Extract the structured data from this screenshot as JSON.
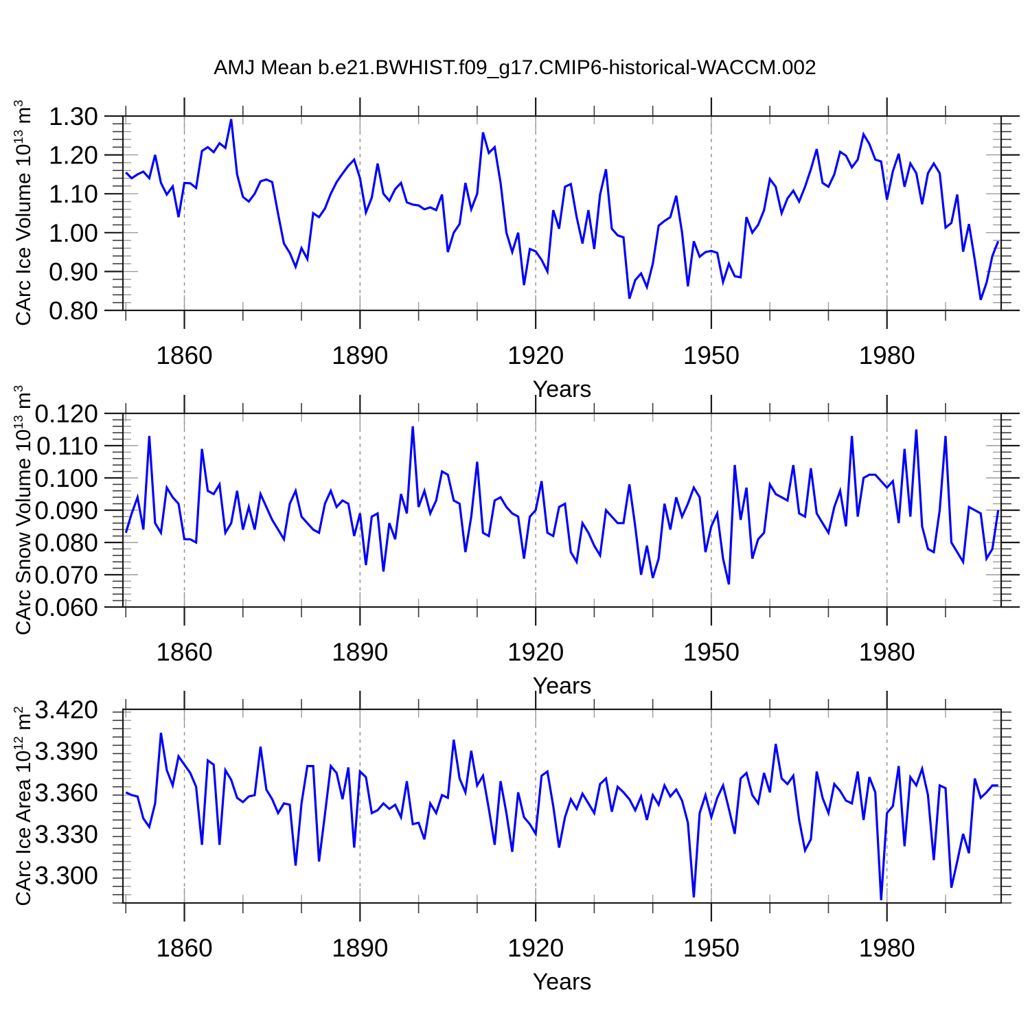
{
  "title": "AMJ Mean b.e21.BWHIST.f09_g17.CMIP6-historical-WACCM.002",
  "line_color": "#0000ff",
  "x_axis": {
    "label": "Years",
    "xlim": [
      1849.5,
      1999.5
    ],
    "major_ticks": [
      1860,
      1890,
      1920,
      1950,
      1980
    ],
    "minor_step": 10,
    "grid_at_major": true
  },
  "chart_data": [
    {
      "type": "line",
      "name": "CArc Ice Volume",
      "ylabel": {
        "prefix": "CArc Ice Volume 10",
        "sup1": "13",
        "mid": " m",
        "sup2": "3"
      },
      "xlabel": "Years",
      "ylim": [
        0.8,
        1.3
      ],
      "y_major_ticks": [
        "0.80",
        "0.90",
        "1.00",
        "1.10",
        "1.20",
        "1.30"
      ],
      "y_minor_step": 0.02,
      "x_start": 1850,
      "x_step": 1,
      "values": [
        1.155,
        1.14,
        1.15,
        1.157,
        1.14,
        1.2,
        1.128,
        1.098,
        1.119,
        1.04,
        1.128,
        1.127,
        1.115,
        1.21,
        1.22,
        1.207,
        1.23,
        1.218,
        1.292,
        1.15,
        1.092,
        1.08,
        1.1,
        1.132,
        1.137,
        1.13,
        1.048,
        0.972,
        0.948,
        0.912,
        0.96,
        0.932,
        1.05,
        1.04,
        1.062,
        1.1,
        1.13,
        1.152,
        1.172,
        1.188,
        1.14,
        1.052,
        1.09,
        1.178,
        1.1,
        1.082,
        1.112,
        1.128,
        1.078,
        1.072,
        1.07,
        1.06,
        1.065,
        1.058,
        1.098,
        0.95,
        1.0,
        1.022,
        1.128,
        1.06,
        1.1,
        1.258,
        1.205,
        1.22,
        1.128,
        1.0,
        0.95,
        1.0,
        0.865,
        0.958,
        0.952,
        0.93,
        0.9,
        1.058,
        1.01,
        1.118,
        1.125,
        1.04,
        0.972,
        1.058,
        0.958,
        1.098,
        1.163,
        1.01,
        0.993,
        0.988,
        0.83,
        0.878,
        0.895,
        0.86,
        0.92,
        1.018,
        1.03,
        1.04,
        1.095,
        1.0,
        0.862,
        0.978,
        0.938,
        0.95,
        0.953,
        0.948,
        0.873,
        0.92,
        0.888,
        0.885,
        1.04,
        1.0,
        1.02,
        1.058,
        1.138,
        1.118,
        1.05,
        1.088,
        1.108,
        1.08,
        1.118,
        1.163,
        1.215,
        1.128,
        1.118,
        1.15,
        1.208,
        1.198,
        1.168,
        1.188,
        1.253,
        1.228,
        1.188,
        1.183,
        1.085,
        1.158,
        1.203,
        1.118,
        1.178,
        1.153,
        1.073,
        1.153,
        1.178,
        1.153,
        1.013,
        1.025,
        1.098,
        0.951,
        1.022,
        0.93,
        0.827,
        0.871,
        0.94,
        0.978
      ]
    },
    {
      "type": "line",
      "name": "CArc Snow Volume",
      "ylabel": {
        "prefix": "CArc Snow Volume 10",
        "sup1": "13",
        "mid": " m",
        "sup2": "3"
      },
      "xlabel": "Years",
      "ylim": [
        0.06,
        0.12
      ],
      "y_major_ticks": [
        "0.060",
        "0.070",
        "0.080",
        "0.090",
        "0.100",
        "0.110",
        "0.120"
      ],
      "y_minor_step": 0.002,
      "x_start": 1850,
      "x_step": 1,
      "values": [
        0.083,
        0.089,
        0.094,
        0.084,
        0.113,
        0.086,
        0.083,
        0.097,
        0.094,
        0.092,
        0.081,
        0.081,
        0.08,
        0.109,
        0.096,
        0.095,
        0.098,
        0.083,
        0.086,
        0.096,
        0.084,
        0.091,
        0.084,
        0.095,
        0.091,
        0.087,
        0.084,
        0.081,
        0.092,
        0.096,
        0.088,
        0.086,
        0.084,
        0.083,
        0.092,
        0.096,
        0.091,
        0.093,
        0.092,
        0.082,
        0.089,
        0.073,
        0.088,
        0.089,
        0.071,
        0.086,
        0.081,
        0.095,
        0.089,
        0.116,
        0.091,
        0.096,
        0.089,
        0.093,
        0.102,
        0.101,
        0.093,
        0.092,
        0.077,
        0.088,
        0.105,
        0.083,
        0.082,
        0.093,
        0.094,
        0.091,
        0.089,
        0.088,
        0.075,
        0.088,
        0.09,
        0.099,
        0.083,
        0.082,
        0.091,
        0.092,
        0.077,
        0.074,
        0.086,
        0.083,
        0.079,
        0.076,
        0.09,
        0.088,
        0.086,
        0.086,
        0.098,
        0.085,
        0.07,
        0.079,
        0.069,
        0.075,
        0.092,
        0.084,
        0.094,
        0.088,
        0.092,
        0.097,
        0.094,
        0.077,
        0.085,
        0.089,
        0.075,
        0.067,
        0.104,
        0.087,
        0.097,
        0.075,
        0.081,
        0.083,
        0.098,
        0.095,
        0.094,
        0.093,
        0.104,
        0.089,
        0.088,
        0.103,
        0.089,
        0.086,
        0.083,
        0.091,
        0.096,
        0.085,
        0.113,
        0.088,
        0.1,
        0.101,
        0.101,
        0.099,
        0.097,
        0.099,
        0.086,
        0.109,
        0.088,
        0.115,
        0.085,
        0.078,
        0.077,
        0.09,
        0.113,
        0.08,
        0.077,
        0.074,
        0.091,
        0.09,
        0.089,
        0.075,
        0.078,
        0.09
      ]
    },
    {
      "type": "line",
      "name": "CArc Ice Area",
      "ylabel": {
        "prefix": "CArc Ice Area 10",
        "sup1": "12",
        "mid": " m",
        "sup2": "2"
      },
      "xlabel": "Years",
      "ylim": [
        3.28,
        3.42
      ],
      "y_major_ticks": [
        "3.300",
        "3.330",
        "3.360",
        "3.390",
        "3.420"
      ],
      "y_minor_step": 0.006,
      "x_start": 1850,
      "x_step": 1,
      "values": [
        3.36,
        3.358,
        3.357,
        3.341,
        3.335,
        3.352,
        3.403,
        3.376,
        3.365,
        3.386,
        3.38,
        3.374,
        3.364,
        3.322,
        3.383,
        3.38,
        3.322,
        3.376,
        3.369,
        3.356,
        3.353,
        3.357,
        3.358,
        3.393,
        3.362,
        3.355,
        3.345,
        3.352,
        3.351,
        3.307,
        3.352,
        3.379,
        3.379,
        3.31,
        3.344,
        3.379,
        3.374,
        3.355,
        3.378,
        3.32,
        3.375,
        3.371,
        3.345,
        3.347,
        3.352,
        3.348,
        3.351,
        3.342,
        3.368,
        3.337,
        3.338,
        3.326,
        3.352,
        3.345,
        3.358,
        3.356,
        3.398,
        3.37,
        3.36,
        3.39,
        3.365,
        3.372,
        3.348,
        3.322,
        3.368,
        3.345,
        3.317,
        3.36,
        3.342,
        3.337,
        3.33,
        3.372,
        3.375,
        3.35,
        3.32,
        3.342,
        3.355,
        3.348,
        3.359,
        3.352,
        3.345,
        3.366,
        3.37,
        3.346,
        3.364,
        3.36,
        3.355,
        3.347,
        3.357,
        3.34,
        3.358,
        3.351,
        3.365,
        3.357,
        3.362,
        3.354,
        3.338,
        3.284,
        3.345,
        3.358,
        3.342,
        3.356,
        3.365,
        3.348,
        3.33,
        3.37,
        3.374,
        3.358,
        3.352,
        3.374,
        3.36,
        3.395,
        3.37,
        3.366,
        3.372,
        3.34,
        3.318,
        3.326,
        3.375,
        3.356,
        3.345,
        3.366,
        3.361,
        3.354,
        3.352,
        3.375,
        3.34,
        3.371,
        3.36,
        3.282,
        3.345,
        3.35,
        3.379,
        3.321,
        3.371,
        3.365,
        3.377,
        3.358,
        3.311,
        3.365,
        3.363,
        3.291,
        3.31,
        3.33,
        3.316,
        3.37,
        3.356,
        3.36,
        3.365,
        3.365
      ]
    }
  ]
}
